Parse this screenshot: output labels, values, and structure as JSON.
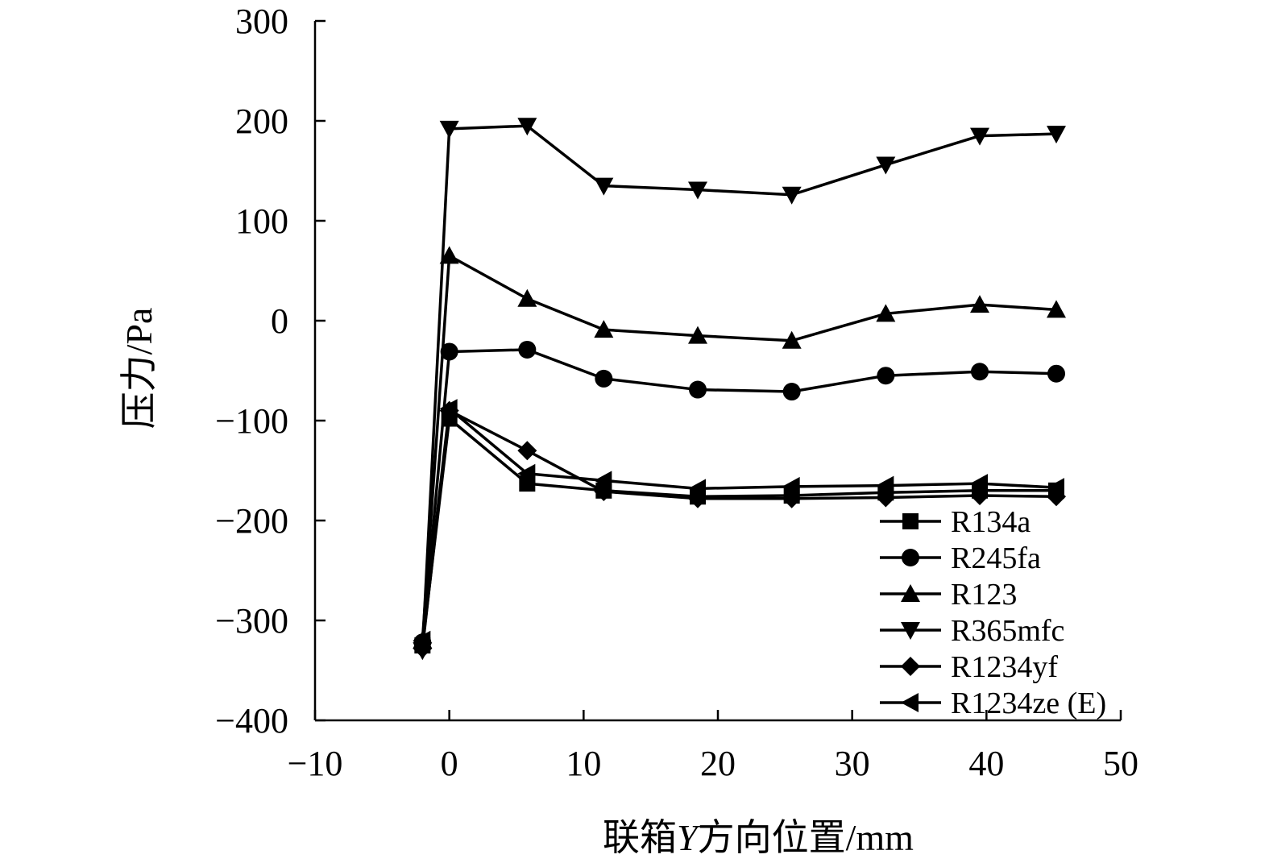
{
  "chart_data": {
    "type": "line",
    "xlabel": "联箱Y方向位置/mm",
    "xlabel_prefix": "联箱",
    "xlabel_var": "Y",
    "xlabel_suffix": "方向位置/mm",
    "ylabel": "压力/Pa",
    "xlim": [
      -10,
      50
    ],
    "ylim": [
      -400,
      300
    ],
    "x_ticks": [
      -10,
      0,
      10,
      20,
      30,
      40,
      50
    ],
    "y_ticks": [
      -400,
      -300,
      -200,
      -100,
      0,
      100,
      200,
      300
    ],
    "x_tick_labels": [
      "−10",
      "0",
      "10",
      "20",
      "30",
      "40",
      "50"
    ],
    "y_tick_labels": [
      "−400",
      "−300",
      "−200",
      "−100",
      "0",
      "100",
      "200",
      "300"
    ],
    "legend_position": "bottom-right",
    "grid": false,
    "x": [
      -2,
      0,
      5.8,
      11.5,
      18.5,
      25.5,
      32.5,
      39.5,
      45.2
    ],
    "series": [
      {
        "name": "R134a",
        "marker": "square",
        "values": [
          -325,
          -98,
          -163,
          -170,
          -176,
          -175,
          -172,
          -170,
          -170
        ]
      },
      {
        "name": "R245fa",
        "marker": "circle",
        "values": [
          -322,
          -31,
          -29,
          -58,
          -69,
          -71,
          -55,
          -51,
          -53
        ]
      },
      {
        "name": "R123",
        "marker": "triangle-up",
        "values": [
          -320,
          65,
          22,
          -9,
          -15,
          -20,
          7,
          16,
          11
        ]
      },
      {
        "name": "R365mfc",
        "marker": "triangle-down",
        "values": [
          -330,
          192,
          195,
          135,
          131,
          126,
          156,
          185,
          187
        ]
      },
      {
        "name": "R1234yf",
        "marker": "diamond",
        "values": [
          -328,
          -90,
          -130,
          -171,
          -178,
          -178,
          -177,
          -175,
          -176
        ]
      },
      {
        "name": "R1234ze (E)",
        "marker": "triangle-left",
        "values": [
          -320,
          -88,
          -153,
          -160,
          -168,
          -166,
          -165,
          -163,
          -167
        ]
      }
    ]
  }
}
